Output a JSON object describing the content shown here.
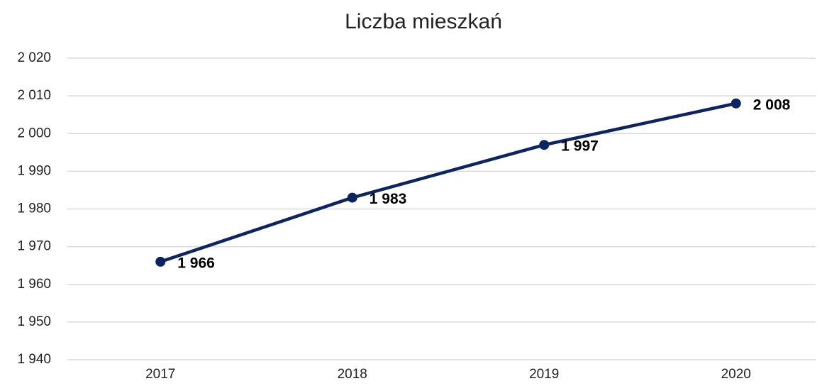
{
  "chart_data": {
    "type": "line",
    "title": "Liczba mieszkań",
    "categories": [
      "2017",
      "2018",
      "2019",
      "2020"
    ],
    "series": [
      {
        "name": "Liczba mieszkań",
        "color": "#0c2461",
        "values": [
          1966,
          1983,
          1997,
          2008
        ],
        "value_labels": [
          "1 966",
          "1 983",
          "1 997",
          "2 008"
        ]
      }
    ],
    "ylim": [
      1940,
      2020
    ],
    "yticks": [
      {
        "value": 1940,
        "label": "1 940"
      },
      {
        "value": 1950,
        "label": "1 950"
      },
      {
        "value": 1960,
        "label": "1 960"
      },
      {
        "value": 1970,
        "label": "1 970"
      },
      {
        "value": 1980,
        "label": "1 980"
      },
      {
        "value": 1990,
        "label": "1 990"
      },
      {
        "value": 2000,
        "label": "2 000"
      },
      {
        "value": 2010,
        "label": "2 010"
      },
      {
        "value": 2020,
        "label": "2 020"
      }
    ],
    "grid": true
  }
}
